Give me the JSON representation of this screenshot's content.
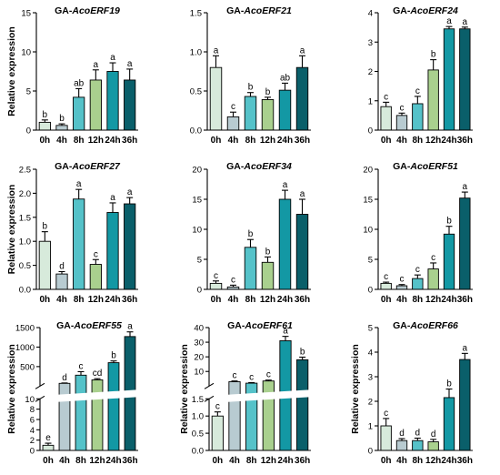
{
  "palette": [
    "#d7eadb",
    "#b8cbd1",
    "#55c2c9",
    "#a9d08e",
    "#1398a4",
    "#0a5f6a"
  ],
  "chart_data": [
    {
      "type": "bar",
      "title_prefix": "GA-",
      "title_gene": "AcoERF19",
      "ylabel": "Relative expression",
      "categories": [
        "0h",
        "4h",
        "8h",
        "12h",
        "24h",
        "36h"
      ],
      "values": [
        1.0,
        0.6,
        4.2,
        6.4,
        7.5,
        6.4
      ],
      "errors": [
        0.3,
        0.2,
        1.1,
        1.3,
        1.1,
        1.4
      ],
      "letters": [
        "b",
        "b",
        "ab",
        "a",
        "a",
        "a"
      ],
      "ylim": [
        0,
        15
      ],
      "yticks": [
        0,
        5,
        10,
        15
      ]
    },
    {
      "type": "bar",
      "title_prefix": "GA-",
      "title_gene": "AcoERF21",
      "ylabel": "",
      "categories": [
        "0h",
        "4h",
        "8h",
        "12h",
        "24h",
        "36h"
      ],
      "values": [
        0.8,
        0.17,
        0.43,
        0.39,
        0.51,
        0.8
      ],
      "errors": [
        0.15,
        0.06,
        0.05,
        0.03,
        0.09,
        0.15
      ],
      "letters": [
        "a",
        "c",
        "b",
        "b",
        "ab",
        "a"
      ],
      "ylim": [
        0,
        1.5
      ],
      "yticks": [
        0.0,
        0.5,
        1.0,
        1.5
      ]
    },
    {
      "type": "bar",
      "title_prefix": "GA-",
      "title_gene": "AcoERF24",
      "ylabel": "",
      "categories": [
        "0h",
        "4h",
        "8h",
        "12h",
        "24h",
        "36h"
      ],
      "values": [
        0.8,
        0.5,
        0.9,
        2.05,
        3.45,
        3.45
      ],
      "errors": [
        0.15,
        0.08,
        0.25,
        0.35,
        0.08,
        0.06
      ],
      "letters": [
        "c",
        "c",
        "c",
        "b",
        "a",
        "a"
      ],
      "ylim": [
        0,
        4
      ],
      "yticks": [
        0,
        1,
        2,
        3,
        4
      ]
    },
    {
      "type": "bar",
      "title_prefix": "GA-",
      "title_gene": "AcoERF27",
      "ylabel": "Relative expression",
      "categories": [
        "0h",
        "4h",
        "8h",
        "12h",
        "24h",
        "36h"
      ],
      "values": [
        1.0,
        0.32,
        1.88,
        0.52,
        1.6,
        1.78
      ],
      "errors": [
        0.2,
        0.05,
        0.2,
        0.1,
        0.2,
        0.13
      ],
      "letters": [
        "b",
        "d",
        "a",
        "c",
        "a",
        "a"
      ],
      "ylim": [
        0,
        2.5
      ],
      "yticks": [
        0.0,
        0.5,
        1.0,
        1.5,
        2.0,
        2.5
      ]
    },
    {
      "type": "bar",
      "title_prefix": "GA-",
      "title_gene": "AcoERF34",
      "ylabel": "",
      "categories": [
        "0h",
        "4h",
        "8h",
        "12h",
        "24h",
        "36h"
      ],
      "values": [
        1.0,
        0.4,
        7.0,
        4.5,
        15.0,
        12.5
      ],
      "errors": [
        0.4,
        0.3,
        1.3,
        0.9,
        1.5,
        2.5
      ],
      "letters": [
        "c",
        "c",
        "b",
        "b",
        "a",
        "a"
      ],
      "ylim": [
        0,
        20
      ],
      "yticks": [
        0,
        5,
        10,
        15,
        20
      ]
    },
    {
      "type": "bar",
      "title_prefix": "GA-",
      "title_gene": "AcoERF51",
      "ylabel": "",
      "categories": [
        "0h",
        "4h",
        "8h",
        "12h",
        "24h",
        "36h"
      ],
      "values": [
        1.0,
        0.6,
        1.8,
        3.4,
        9.2,
        15.2
      ],
      "errors": [
        0.2,
        0.2,
        0.6,
        1.0,
        1.3,
        1.0
      ],
      "letters": [
        "c",
        "c",
        "c",
        "c",
        "b",
        "a"
      ],
      "ylim": [
        0,
        20
      ],
      "yticks": [
        0,
        5,
        10,
        15,
        20
      ]
    },
    {
      "type": "bar",
      "title_prefix": "GA-",
      "title_gene": "AcoERF55",
      "ylabel": "Relative expression",
      "categories": [
        "0h",
        "4h",
        "8h",
        "12h",
        "24h",
        "36h"
      ],
      "values": [
        1.0,
        70,
        280,
        160,
        600,
        1270
      ],
      "errors": [
        0.4,
        10,
        90,
        30,
        45,
        120
      ],
      "letters": [
        "e",
        "d",
        "c",
        "cd",
        "b",
        "a"
      ],
      "broken_axis": {
        "lower_ylim": [
          0,
          10
        ],
        "lower_ticks": [
          0,
          2,
          4,
          6,
          8,
          10
        ],
        "upper_ylim": [
          0,
          1500
        ],
        "upper_ticks": [
          500,
          1000,
          1500
        ]
      }
    },
    {
      "type": "bar",
      "title_prefix": "GA-",
      "title_gene": "AcoERF61",
      "ylabel": "Relative expression",
      "categories": [
        "0h",
        "4h",
        "8h",
        "12h",
        "24h",
        "36h"
      ],
      "values": [
        1.0,
        3.0,
        2.0,
        3.5,
        31.0,
        18.0
      ],
      "errors": [
        0.12,
        0.5,
        0.4,
        0.6,
        3.0,
        1.8
      ],
      "letters": [
        "c",
        "c",
        "c",
        "c",
        "a",
        "b"
      ],
      "broken_axis": {
        "lower_ylim": [
          0,
          1.5
        ],
        "lower_ticks": [
          0.0,
          0.5,
          1.0,
          1.5
        ],
        "upper_ylim": [
          0,
          40
        ],
        "upper_ticks": [
          10,
          20,
          30,
          40
        ]
      }
    },
    {
      "type": "bar",
      "title_prefix": "GA-",
      "title_gene": "AcoERF66",
      "ylabel": "Relative expression",
      "categories": [
        "0h",
        "4h",
        "8h",
        "12h",
        "24h",
        "36h"
      ],
      "values": [
        1.0,
        0.4,
        0.4,
        0.35,
        2.15,
        3.7
      ],
      "errors": [
        0.3,
        0.08,
        0.1,
        0.1,
        0.35,
        0.25
      ],
      "letters": [
        "c",
        "d",
        "d",
        "d",
        "b",
        "a"
      ],
      "ylim": [
        0,
        5
      ],
      "yticks": [
        0,
        1,
        2,
        3,
        4,
        5
      ]
    }
  ]
}
